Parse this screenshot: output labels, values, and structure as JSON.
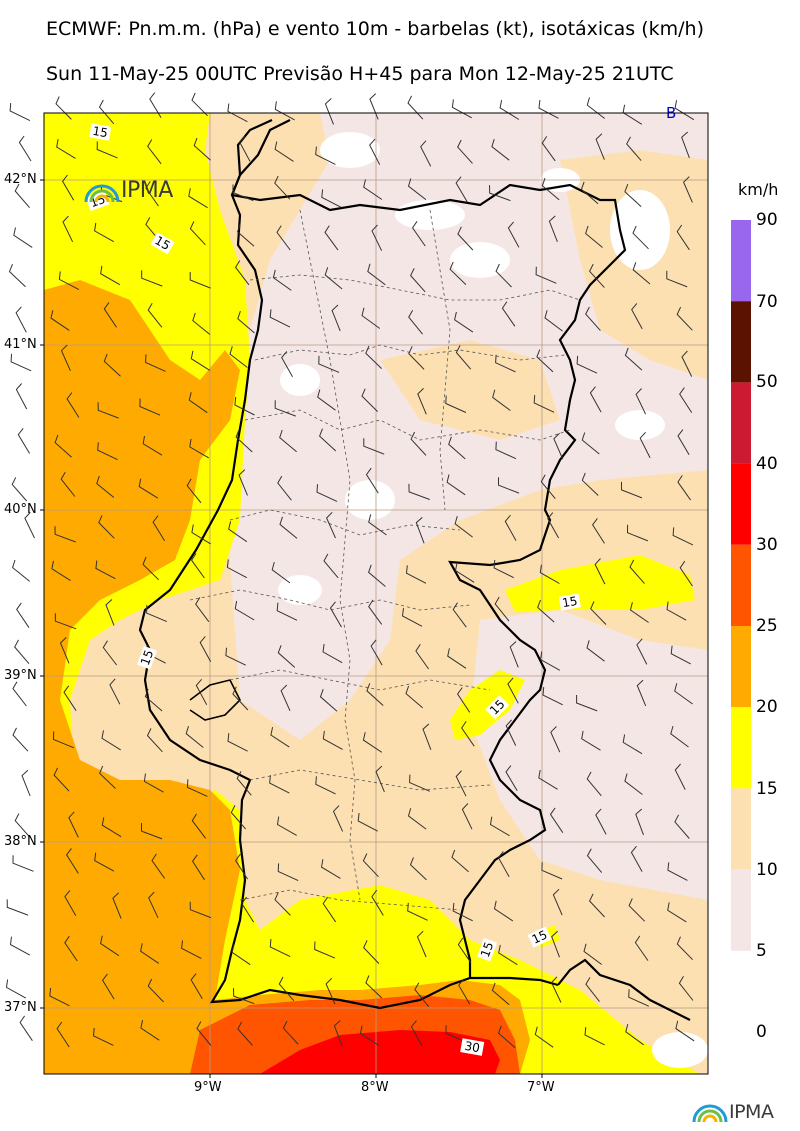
{
  "header": {
    "title_line1": "ECMWF: Pn.m.m. (hPa) e vento 10m - barbelas (kt), isotáxicas (km/h)",
    "title_line2": "Sun 11-May-25 00UTC Previsão H+45 para Mon 12-May-25 21UTC"
  },
  "map": {
    "lat_labels": [
      "42°N",
      "41°N",
      "40°N",
      "39°N",
      "38°N",
      "37°N"
    ],
    "lon_labels": [
      "9°W",
      "8°W",
      "7°W"
    ],
    "pressure_center_label": "B",
    "isotach_labels": [
      "15",
      "15",
      "15",
      "15",
      "15",
      "15",
      "15",
      "15",
      "15",
      "30"
    ],
    "wind_barb_unit": "kt"
  },
  "legend": {
    "unit": "km/h",
    "levels": [
      "90",
      "70",
      "50",
      "40",
      "30",
      "25",
      "20",
      "15",
      "10",
      "5",
      "0"
    ],
    "colors": [
      "#9966ee",
      "#5c1200",
      "#cc1a33",
      "#ff0000",
      "#ff5500",
      "#ffaa00",
      "#ffff00",
      "#fde0b2",
      "#f5e6e6"
    ]
  },
  "branding": {
    "logo_text": "IPMA"
  }
}
